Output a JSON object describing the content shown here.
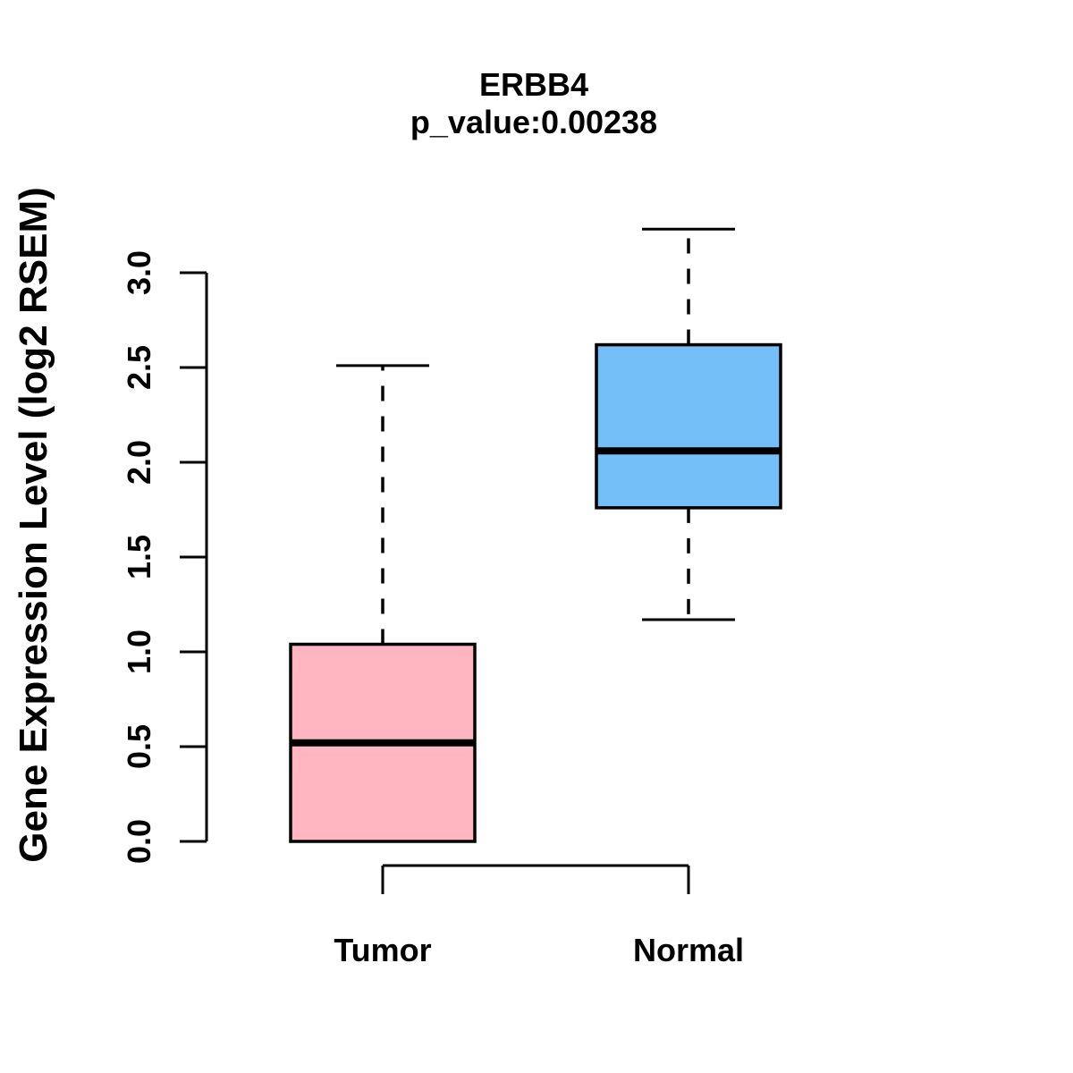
{
  "chart_data": {
    "type": "boxplot",
    "title": "ERBB4",
    "subtitle": "p_value:0.00238",
    "ylabel": "Gene Expression Level (log2 RSEM)",
    "xlabel": "",
    "ylim": [
      0,
      3.3
    ],
    "yticks": [
      0,
      0.5,
      1,
      1.5,
      2,
      2.5,
      3
    ],
    "ytick_labels": [
      "0.0",
      "0.5",
      "1.0",
      "1.5",
      "2.0",
      "2.5",
      "3.0"
    ],
    "grid": false,
    "legend": "none",
    "groups": [
      {
        "label": "Tumor",
        "fill": "#FFB6C1",
        "whisker_low": 0.0,
        "q1": 0.0,
        "median": 0.52,
        "q3": 1.04,
        "whisker_high": 2.51
      },
      {
        "label": "Normal",
        "fill": "#74BFF7",
        "whisker_low": 1.17,
        "q1": 1.76,
        "median": 2.06,
        "q3": 2.62,
        "whisker_high": 3.23
      }
    ],
    "x_axis_bracket": {
      "from": "Tumor",
      "to": "Normal"
    },
    "colors": {
      "stroke": "#000000",
      "background": "#ffffff",
      "tumor_fill": "#FFB6C1",
      "normal_fill": "#74BFF7"
    }
  }
}
